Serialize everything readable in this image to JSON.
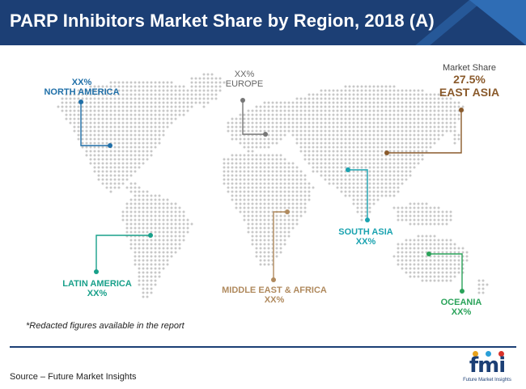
{
  "header": {
    "title": "PARP Inhibitors Market Share by Region, 2018 (A)"
  },
  "chart_data": {
    "type": "map",
    "title": "PARP Inhibitors Market Share by Region, 2018 (A)",
    "regions": [
      {
        "id": "north-america",
        "name": "NORTH AMERICA",
        "value": "XX%",
        "color": "#1f6fa8"
      },
      {
        "id": "europe",
        "name": "EUROPE",
        "value": "XX%",
        "color": "#777777"
      },
      {
        "id": "east-asia",
        "name": "EAST ASIA",
        "value": "27.5%",
        "prefix": "Market Share",
        "color": "#8a5a2b"
      },
      {
        "id": "south-asia",
        "name": "SOUTH ASIA",
        "value": "XX%",
        "color": "#1aa3b0"
      },
      {
        "id": "latin-america",
        "name": "LATIN AMERICA",
        "value": "XX%",
        "color": "#18a08a"
      },
      {
        "id": "middle-east-africa",
        "name": "MIDDLE EAST & AFRICA",
        "value": "XX%",
        "color": "#b08a5e"
      },
      {
        "id": "oceania",
        "name": "OCEANIA",
        "value": "XX%",
        "color": "#2aa35a"
      }
    ]
  },
  "footer": {
    "note": "*Redacted figures available in the report",
    "source": "Source – Future Market Insights",
    "logo_text": "fmi",
    "logo_sub": "Future Market Insights",
    "logo_dot_colors": [
      "#e8a21c",
      "#2a9fd8",
      "#d8322a"
    ]
  },
  "colors": {
    "header_bg": "#1c3f75",
    "header_accent": "#2f6db5",
    "map_dot": "#c8c8c8"
  }
}
